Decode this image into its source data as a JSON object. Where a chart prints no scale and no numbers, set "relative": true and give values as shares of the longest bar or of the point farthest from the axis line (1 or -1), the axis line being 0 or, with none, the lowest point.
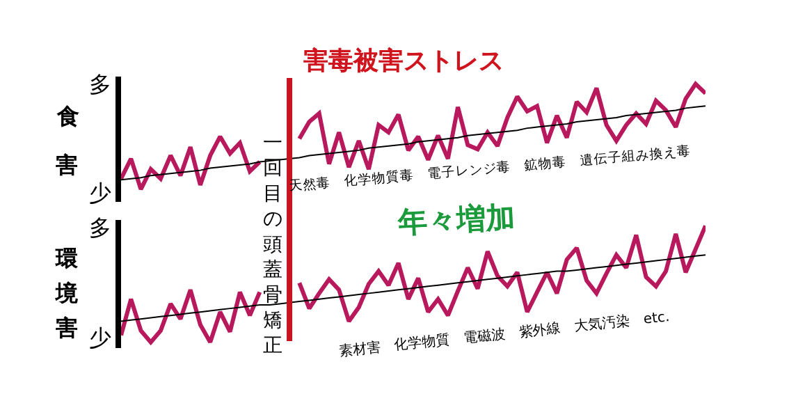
{
  "chart_data": [
    {
      "type": "line",
      "title": "害毒被害ストレス",
      "ylabel": "食害",
      "relative": true,
      "categories": [
        null,
        null,
        null,
        null,
        null,
        null,
        null,
        null,
        null,
        null,
        null,
        null,
        null,
        null,
        null,
        null,
        null,
        null,
        null,
        null,
        null,
        null,
        null,
        null,
        null,
        null,
        null,
        null,
        null,
        null,
        null,
        null,
        null,
        null,
        null,
        null,
        null,
        null,
        null,
        null,
        null,
        null,
        null,
        null,
        null,
        null,
        null,
        null,
        null,
        null,
        null,
        null,
        null,
        null,
        null,
        null,
        null,
        null,
        null,
        null
      ],
      "series": [
        {
          "color": "#b8185c",
          "values": [
            0.1,
            0.29,
            0,
            0.19,
            0.1,
            0.32,
            0.13,
            0.4,
            0.04,
            0.32,
            0.5,
            0.34,
            0.44,
            0.17,
            0.26,
            null,
            null,
            null,
            null,
            null,
            null,
            null,
            null,
            null,
            null,
            null,
            null,
            null,
            null,
            null,
            null,
            null,
            null,
            null,
            null,
            null,
            null,
            null,
            null,
            null,
            null,
            null,
            null,
            null,
            null,
            null,
            null,
            null,
            null,
            null,
            null,
            null,
            null,
            null,
            null,
            null,
            null,
            null,
            null,
            null
          ]
        },
        {
          "color": "#b8185c",
          "values": [
            null,
            null,
            null,
            null,
            null,
            null,
            null,
            null,
            null,
            null,
            null,
            null,
            null,
            null,
            null,
            null,
            null,
            null,
            0.48,
            0.64,
            0.72,
            0.24,
            0.54,
            0.21,
            0.46,
            0.19,
            0.61,
            0.54,
            0.71,
            0.37,
            0.5,
            0.28,
            0.51,
            0.29,
            0.78,
            0.42,
            0.38,
            0.54,
            0.41,
            0.68,
            0.88,
            0.74,
            0.79,
            0.44,
            0.7,
            0.49,
            0.83,
            0.73,
            0.96,
            0.61,
            0.46,
            0.61,
            0.72,
            0.62,
            0.84,
            0.75,
            0.59,
            0.86,
            1,
            0.91
          ]
        },
        {
          "color": "#000000",
          "values": [
            0.09,
            0.1,
            0.11,
            0.13,
            0.14,
            0.15,
            0.16,
            0.17,
            0.18,
            0.2,
            0.21,
            0.22,
            0.23,
            0.24,
            0.26,
            0.27,
            0.28,
            0.29,
            0.3,
            0.32,
            0.33,
            0.34,
            0.35,
            0.36,
            0.37,
            0.39,
            0.4,
            0.41,
            0.42,
            0.43,
            0.45,
            0.46,
            0.47,
            0.48,
            0.49,
            0.51,
            0.52,
            0.53,
            0.54,
            0.55,
            0.56,
            0.58,
            0.59,
            0.6,
            0.61,
            0.62,
            0.64,
            0.65,
            0.66,
            0.67,
            0.68,
            0.7,
            0.71,
            0.72,
            0.73,
            0.74,
            0.75,
            0.77,
            0.78,
            0.79
          ]
        }
      ],
      "ref_lines": [
        {
          "axis": "x",
          "label": "一回目の頭蓋骨矯正",
          "color": "#c8141e"
        }
      ],
      "annotations": [
        "多",
        "少",
        "天然毒　化学物質毒　電子レンジ毒　鉱物毒　遺伝子組み換え毒"
      ]
    },
    {
      "type": "line",
      "ylabel": "環境害",
      "relative": true,
      "categories": [
        null,
        null,
        null,
        null,
        null,
        null,
        null,
        null,
        null,
        null,
        null,
        null,
        null,
        null,
        null,
        null,
        null,
        null,
        null,
        null,
        null,
        null,
        null,
        null,
        null,
        null,
        null,
        null,
        null,
        null,
        null,
        null,
        null,
        null,
        null,
        null,
        null,
        null,
        null,
        null,
        null,
        null,
        null,
        null,
        null,
        null,
        null,
        null,
        null,
        null,
        null,
        null,
        null,
        null,
        null,
        null,
        null,
        null,
        null,
        null
      ],
      "series": [
        {
          "color": "#b8185c",
          "values": [
            0.06,
            0.37,
            0.1,
            0,
            0.1,
            0.33,
            0.2,
            0.45,
            0.15,
            0,
            0.26,
            0.09,
            0.43,
            0.23,
            0.43,
            null,
            null,
            null,
            null,
            null,
            null,
            null,
            null,
            null,
            null,
            null,
            null,
            null,
            null,
            null,
            null,
            null,
            null,
            null,
            null,
            null,
            null,
            null,
            null,
            null,
            null,
            null,
            null,
            null,
            null,
            null,
            null,
            null,
            null,
            null,
            null,
            null,
            null,
            null,
            null,
            null,
            null,
            null,
            null,
            null
          ]
        },
        {
          "color": "#b8185c",
          "values": [
            null,
            null,
            null,
            null,
            null,
            null,
            null,
            null,
            null,
            null,
            null,
            null,
            null,
            null,
            null,
            null,
            null,
            null,
            0.51,
            0.29,
            0.42,
            0.54,
            0.45,
            0.18,
            0.3,
            0.5,
            0.61,
            0.49,
            0.68,
            0.37,
            0.55,
            0.26,
            0.37,
            0.23,
            0.44,
            0.64,
            0.46,
            0.78,
            0.57,
            0.48,
            0.6,
            0.26,
            0.43,
            0.6,
            0.42,
            0.71,
            0.81,
            0.53,
            0.42,
            0.59,
            0.75,
            0.64,
            0.92,
            0.56,
            0.48,
            0.61,
            0.93,
            0.6,
            0.8,
            1
          ]
        },
        {
          "color": "#000000",
          "values": [
            0.18,
            0.19,
            0.2,
            0.21,
            0.22,
            0.23,
            0.24,
            0.25,
            0.26,
            0.27,
            0.28,
            0.29,
            0.3,
            0.31,
            0.32,
            0.32,
            0.33,
            0.34,
            0.35,
            0.36,
            0.37,
            0.38,
            0.39,
            0.4,
            0.41,
            0.42,
            0.43,
            0.44,
            0.45,
            0.46,
            0.47,
            0.48,
            0.49,
            0.5,
            0.51,
            0.52,
            0.53,
            0.54,
            0.55,
            0.56,
            0.57,
            0.58,
            0.59,
            0.6,
            0.61,
            0.61,
            0.62,
            0.63,
            0.64,
            0.65,
            0.66,
            0.67,
            0.68,
            0.69,
            0.7,
            0.71,
            0.72,
            0.73,
            0.74,
            0.75
          ]
        }
      ],
      "ref_lines": [
        {
          "axis": "x",
          "color": "#c8141e"
        }
      ],
      "annotations": [
        "多",
        "少",
        "年々増加",
        "素材害　化学物質　電磁波　紫外線　大気汚染　etc."
      ]
    }
  ]
}
